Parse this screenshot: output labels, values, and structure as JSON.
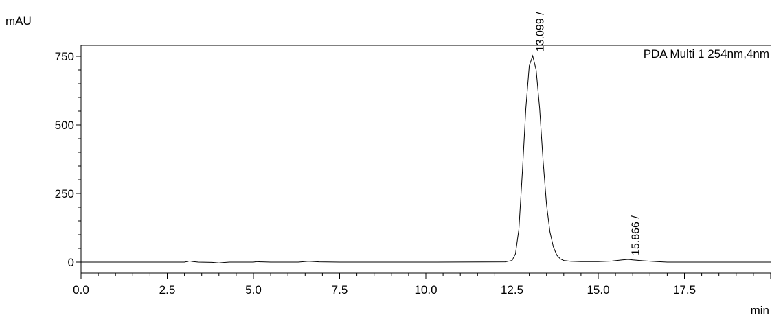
{
  "chart_data": {
    "type": "line",
    "yunit": "mAU",
    "xunit": "min",
    "legend": "PDA Multi 1 254nm,4nm",
    "legend_position": "top-right",
    "xlim": [
      0.0,
      20.0
    ],
    "ylim": [
      -40,
      790
    ],
    "x_ticks": [
      "0.0",
      "2.5",
      "5.0",
      "7.5",
      "10.0",
      "12.5",
      "15.0",
      "17.5"
    ],
    "y_ticks": [
      "0",
      "250",
      "500",
      "750"
    ],
    "grid": false,
    "series": [
      {
        "x": [
          0.0,
          3.0,
          3.15,
          3.25,
          3.4,
          3.8,
          4.0,
          4.1,
          4.3,
          5.0,
          5.1,
          5.2,
          5.5,
          6.3,
          6.6,
          6.9,
          7.5,
          10.0,
          12.3,
          12.5,
          12.6,
          12.7,
          12.8,
          12.9,
          13.0,
          13.099,
          13.2,
          13.3,
          13.4,
          13.5,
          13.6,
          13.7,
          13.8,
          13.9,
          14.0,
          14.2,
          14.5,
          15.0,
          15.4,
          15.7,
          15.866,
          16.0,
          16.3,
          16.7,
          17.0,
          20.0
        ],
        "y": [
          0,
          0,
          4,
          2,
          0,
          -1,
          -3,
          -2,
          0,
          0,
          2,
          1,
          0,
          0,
          3,
          1,
          0,
          0,
          1,
          6,
          30,
          120,
          330,
          560,
          715,
          752,
          700,
          560,
          370,
          210,
          110,
          55,
          25,
          12,
          6,
          3,
          2,
          2,
          4,
          8,
          10,
          8,
          5,
          2,
          0,
          0
        ]
      }
    ],
    "peak_labels": [
      {
        "x": 13.099,
        "y": 752,
        "text": "13.099 /"
      },
      {
        "x": 15.866,
        "y": 10,
        "text": "15.866 /"
      }
    ]
  }
}
